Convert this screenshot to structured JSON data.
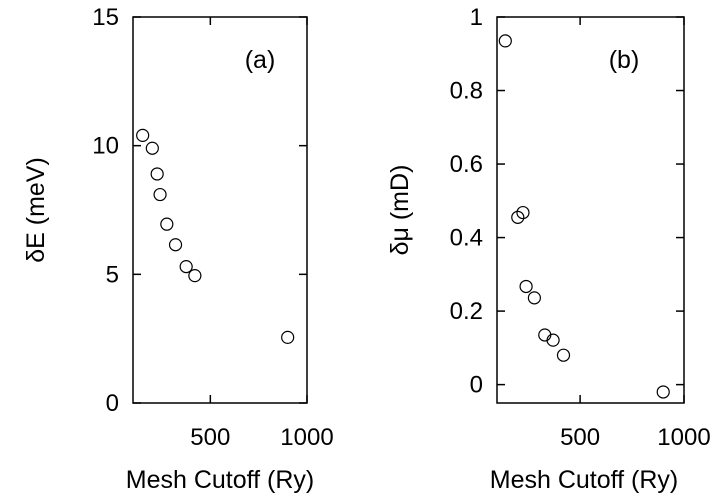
{
  "chart_data": [
    {
      "type": "scatter",
      "panel_label": "(a)",
      "xlabel": "Mesh Cutoff (Ry)",
      "ylabel": "δE (meV)",
      "xlim": [
        100,
        1000
      ],
      "ylim": [
        0,
        15
      ],
      "xticks": [
        500,
        1000
      ],
      "yticks": [
        0,
        5,
        10,
        15
      ],
      "grid": false,
      "points": [
        {
          "x": 150,
          "y": 10.4
        },
        {
          "x": 200,
          "y": 9.9
        },
        {
          "x": 225,
          "y": 8.9
        },
        {
          "x": 240,
          "y": 8.1
        },
        {
          "x": 275,
          "y": 6.95
        },
        {
          "x": 320,
          "y": 6.15
        },
        {
          "x": 375,
          "y": 5.3
        },
        {
          "x": 420,
          "y": 4.95
        },
        {
          "x": 900,
          "y": 2.55
        }
      ]
    },
    {
      "type": "scatter",
      "panel_label": "(b)",
      "xlabel": "Mesh Cutoff (Ry)",
      "ylabel": "δμ (mD)",
      "xlim": [
        100,
        1000
      ],
      "ylim": [
        -0.05,
        1.0
      ],
      "xticks": [
        500,
        1000
      ],
      "yticks": [
        0,
        0.2,
        0.4,
        0.6,
        0.8,
        1
      ],
      "ytick_labels": [
        "0",
        "0.2",
        "0.4",
        "0.6",
        "0.8",
        "1"
      ],
      "grid": false,
      "points": [
        {
          "x": 140,
          "y": 0.935
        },
        {
          "x": 200,
          "y": 0.455
        },
        {
          "x": 225,
          "y": 0.468
        },
        {
          "x": 240,
          "y": 0.267
        },
        {
          "x": 280,
          "y": 0.236
        },
        {
          "x": 330,
          "y": 0.135
        },
        {
          "x": 370,
          "y": 0.121
        },
        {
          "x": 420,
          "y": 0.08
        },
        {
          "x": 900,
          "y": -0.02
        }
      ]
    }
  ]
}
